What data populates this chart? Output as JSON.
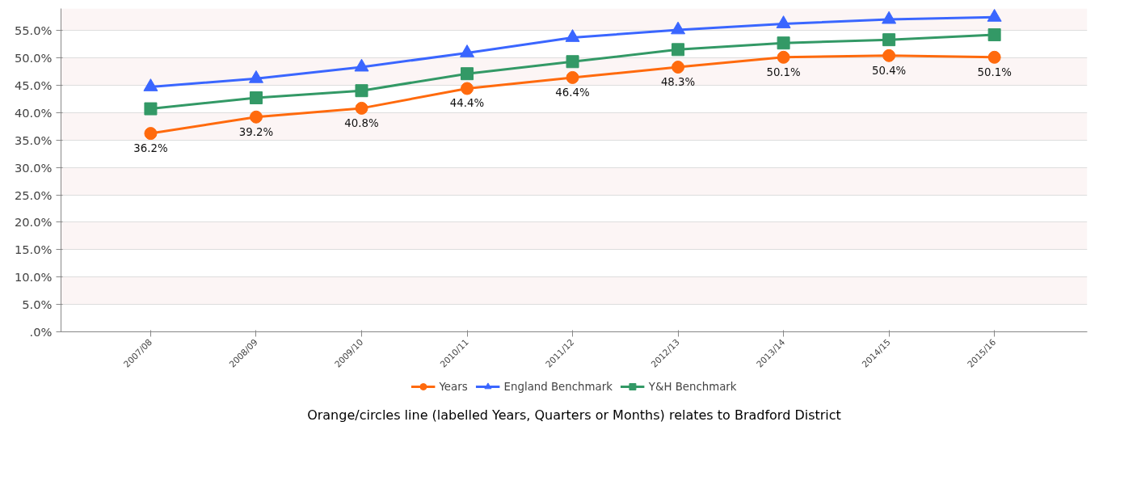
{
  "chart_data": {
    "type": "line",
    "categories": [
      "2007/08",
      "2008/09",
      "2009/10",
      "2010/11",
      "2011/12",
      "2012/13",
      "2013/14",
      "2014/15",
      "2015/16"
    ],
    "series": [
      {
        "name": "Years",
        "color": "#ff6a0d",
        "marker": "circle",
        "values": [
          36.2,
          39.2,
          40.8,
          44.4,
          46.4,
          48.3,
          50.1,
          50.4,
          50.1
        ],
        "value_labels": [
          "36.2%",
          "39.2%",
          "40.8%",
          "44.4%",
          "46.4%",
          "48.3%",
          "50.1%",
          "50.4%",
          "50.1%"
        ]
      },
      {
        "name": "England Benchmark",
        "color": "#3a66ff",
        "marker": "triangle",
        "values": [
          44.7,
          46.2,
          48.3,
          50.9,
          53.7,
          55.1,
          56.2,
          57.0,
          57.4
        ]
      },
      {
        "name": "Y&H Benchmark",
        "color": "#339966",
        "marker": "square",
        "values": [
          40.7,
          42.7,
          44.0,
          47.1,
          49.3,
          51.5,
          52.7,
          53.3,
          54.2
        ]
      }
    ],
    "ylim": [
      0,
      59
    ],
    "yticks": [
      {
        "value": 0,
        "label": ".0%"
      },
      {
        "value": 5,
        "label": "5.0%"
      },
      {
        "value": 10,
        "label": "10.0%"
      },
      {
        "value": 15,
        "label": "15.0%"
      },
      {
        "value": 20,
        "label": "20.0%"
      },
      {
        "value": 25,
        "label": "25.0%"
      },
      {
        "value": 30,
        "label": "30.0%"
      },
      {
        "value": 35,
        "label": "35.0%"
      },
      {
        "value": 40,
        "label": "40.0%"
      },
      {
        "value": 45,
        "label": "45.0%"
      },
      {
        "value": 50,
        "label": "50.0%"
      },
      {
        "value": 55,
        "label": "55.0%"
      }
    ],
    "grid": "y",
    "legend": "bottom",
    "annotations": [
      "Orange/circles line (labelled Years, Quarters or Months) relates to Bradford District"
    ]
  }
}
